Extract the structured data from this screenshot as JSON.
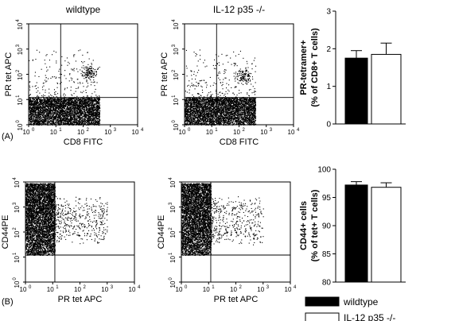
{
  "panel_labels": [
    "(A)",
    "(B)"
  ],
  "chart_data": [
    {
      "type": "scatter",
      "panel": "A",
      "title": "wildtype",
      "xlabel": "CD8 FITC",
      "ylabel": "PR tet APC",
      "xscale": "log",
      "yscale": "log",
      "xlim": [
        1,
        10000
      ],
      "ylim": [
        1,
        10000
      ],
      "xticks": [
        "10",
        "10",
        "10",
        "10",
        "10"
      ],
      "yticks": [
        "10",
        "10",
        "10",
        "10",
        "10"
      ],
      "tick_exponents": [
        "0",
        "1",
        "2",
        "3",
        "4"
      ],
      "gates": {
        "x": 15,
        "y": 12
      },
      "populations": [
        {
          "name": "negative",
          "x_range": [
            1,
            400
          ],
          "y_range": [
            1,
            12
          ],
          "density": "very high"
        },
        {
          "name": "scatter",
          "x_range": [
            1,
            400
          ],
          "y_range": [
            12,
            1000
          ],
          "density": "low"
        },
        {
          "name": "tetramer-positive",
          "x_center": 150,
          "y_center": 120,
          "density": "medium"
        }
      ]
    },
    {
      "type": "scatter",
      "panel": "A",
      "title": "IL-12 p35 -/-",
      "xlabel": "CD8 FITC",
      "ylabel": "PR tet APC",
      "xscale": "log",
      "yscale": "log",
      "xlim": [
        1,
        10000
      ],
      "ylim": [
        1,
        10000
      ],
      "xticks": [
        "10",
        "10",
        "10",
        "10",
        "10"
      ],
      "yticks": [
        "10",
        "10",
        "10",
        "10",
        "10"
      ],
      "tick_exponents": [
        "0",
        "1",
        "2",
        "3",
        "4"
      ],
      "gates": {
        "x": 15,
        "y": 12
      },
      "populations": [
        {
          "name": "negative",
          "x_range": [
            1,
            400
          ],
          "y_range": [
            1,
            12
          ],
          "density": "very high"
        },
        {
          "name": "scatter",
          "x_range": [
            1,
            400
          ],
          "y_range": [
            12,
            1000
          ],
          "density": "low"
        },
        {
          "name": "tetramer-positive",
          "x_center": 150,
          "y_center": 90,
          "density": "medium"
        }
      ]
    },
    {
      "type": "bar",
      "panel": "A",
      "categories": [
        "wildtype",
        "IL-12 p35 -/-"
      ],
      "values": [
        1.75,
        1.85
      ],
      "errors": [
        0.2,
        0.3
      ],
      "colors": [
        "#000000",
        "#ffffff"
      ],
      "ylabel_line1": "PR-tetramer+",
      "ylabel_line2": "(% of CD8+ T cells)",
      "ylim": [
        0,
        3
      ],
      "yticks": [
        "0",
        "1",
        "2",
        "3"
      ]
    },
    {
      "type": "scatter",
      "panel": "B",
      "xlabel": "PR tet APC",
      "ylabel": "CD44PE",
      "xscale": "log",
      "yscale": "log",
      "xlim": [
        1,
        10000
      ],
      "ylim": [
        1,
        10000
      ],
      "xticks": [
        "10",
        "10",
        "10",
        "10",
        "10"
      ],
      "yticks": [
        "10",
        "10",
        "10",
        "10",
        "10"
      ],
      "tick_exponents": [
        "0",
        "1",
        "2",
        "3",
        "4"
      ],
      "gates": {
        "x": 12,
        "y": 12
      },
      "populations": [
        {
          "name": "tetramer-negative",
          "x_range": [
            1,
            12
          ],
          "y_range": [
            12,
            9000
          ],
          "density": "very high"
        },
        {
          "name": "tetramer-positive",
          "x_range": [
            12,
            1000
          ],
          "y_range": [
            30,
            3000
          ],
          "density": "medium"
        }
      ]
    },
    {
      "type": "scatter",
      "panel": "B",
      "xlabel": "PR tet APC",
      "ylabel": "CD44PE",
      "xscale": "log",
      "yscale": "log",
      "xlim": [
        1,
        10000
      ],
      "ylim": [
        1,
        10000
      ],
      "xticks": [
        "10",
        "10",
        "10",
        "10",
        "10"
      ],
      "yticks": [
        "10",
        "10",
        "10",
        "10",
        "10"
      ],
      "tick_exponents": [
        "0",
        "1",
        "2",
        "3",
        "4"
      ],
      "gates": {
        "x": 12,
        "y": 12
      },
      "populations": [
        {
          "name": "tetramer-negative",
          "x_range": [
            1,
            12
          ],
          "y_range": [
            12,
            9000
          ],
          "density": "very high"
        },
        {
          "name": "tetramer-positive",
          "x_range": [
            12,
            1000
          ],
          "y_range": [
            30,
            3000
          ],
          "density": "medium"
        }
      ]
    },
    {
      "type": "bar",
      "panel": "B",
      "categories": [
        "wildtype",
        "IL-12 p35 -/-"
      ],
      "values": [
        97.2,
        96.8
      ],
      "errors": [
        0.6,
        0.8
      ],
      "colors": [
        "#000000",
        "#ffffff"
      ],
      "ylabel_line1": "CD44+ cells",
      "ylabel_line2": "(% of tet+ T cells)",
      "ylim": [
        80,
        100
      ],
      "yticks": [
        "80",
        "85",
        "90",
        "95",
        "100"
      ]
    }
  ],
  "legend": {
    "placement": "bottom-right",
    "items": [
      {
        "label": "wildtype",
        "color": "#000000"
      },
      {
        "label": "IL-12 p35 -/-",
        "color": "#ffffff"
      }
    ]
  }
}
